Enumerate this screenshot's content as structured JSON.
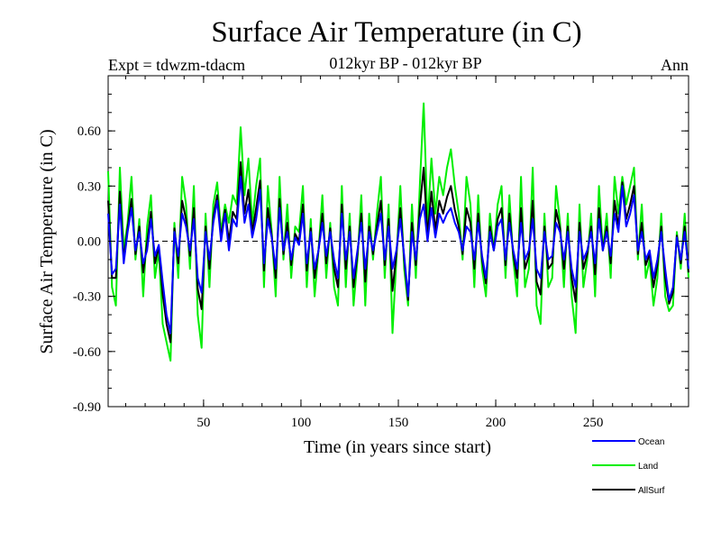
{
  "title": "Surface Air Temperature (in C)",
  "left_label": "Expt = tdwzm-tdacm",
  "center_label": "012kyr BP - 012kyr BP",
  "right_label": "Ann",
  "chart_data": {
    "type": "line",
    "title": "Surface Air Temperature (in C)",
    "xlabel": "Time (in years since start)",
    "ylabel": "Surface Air Temperature (in C)",
    "xlim": [
      1,
      299
    ],
    "ylim": [
      -0.9,
      0.9
    ],
    "x_ticks": [
      50,
      100,
      150,
      200,
      250
    ],
    "x_tick_labels": [
      "50",
      "100",
      "150",
      "200",
      "250"
    ],
    "y_ticks": [
      -0.9,
      -0.6,
      -0.3,
      0.0,
      0.3,
      0.6
    ],
    "y_tick_labels": [
      "-0.90",
      "-0.60",
      "-0.30",
      "0.00",
      "0.30",
      "0.60"
    ],
    "zero_line": "dashed",
    "grid": false,
    "legend_position": "below-right",
    "x_step": 2,
    "x_start": 1,
    "series": [
      {
        "name": "Ocean",
        "color": "#0000ff",
        "values": [
          0.15,
          -0.18,
          -0.15,
          0.2,
          -0.12,
          0.05,
          0.18,
          -0.05,
          0.05,
          -0.12,
          -0.05,
          0.12,
          -0.08,
          -0.02,
          -0.22,
          -0.4,
          -0.5,
          0.05,
          -0.08,
          0.15,
          0.08,
          -0.05,
          0.12,
          -0.2,
          -0.28,
          0.05,
          -0.1,
          0.1,
          0.22,
          0.0,
          0.15,
          -0.05,
          0.12,
          0.08,
          0.35,
          0.1,
          0.2,
          0.02,
          0.12,
          0.28,
          -0.12,
          0.12,
          0.02,
          -0.15,
          0.18,
          -0.05,
          0.05,
          -0.1,
          0.02,
          -0.02,
          0.15,
          -0.12,
          0.05,
          -0.15,
          -0.05,
          0.1,
          -0.08,
          0.05,
          -0.1,
          -0.2,
          0.15,
          -0.1,
          0.05,
          -0.2,
          -0.05,
          0.1,
          -0.15,
          0.05,
          -0.05,
          0.05,
          0.15,
          -0.1,
          0.08,
          -0.15,
          -0.05,
          0.12,
          -0.08,
          -0.3,
          0.05,
          -0.1,
          0.12,
          0.2,
          0.0,
          0.18,
          0.02,
          0.15,
          0.1,
          0.15,
          0.18,
          0.1,
          0.05,
          -0.05,
          0.08,
          0.05,
          -0.1,
          0.1,
          -0.08,
          -0.2,
          0.05,
          -0.05,
          0.08,
          0.12,
          -0.1,
          0.1,
          -0.05,
          -0.15,
          0.1,
          -0.1,
          -0.05,
          0.12,
          -0.15,
          -0.2,
          0.05,
          -0.1,
          -0.08,
          0.1,
          0.05,
          -0.1,
          0.05,
          -0.15,
          -0.25,
          0.05,
          -0.1,
          -0.05,
          0.05,
          -0.12,
          0.12,
          -0.05,
          0.05,
          -0.08,
          0.15,
          0.05,
          0.3,
          0.08,
          0.15,
          0.25,
          -0.05,
          0.05,
          -0.1,
          -0.05,
          -0.2,
          -0.1,
          0.05,
          -0.15,
          -0.32,
          -0.25,
          0.02,
          -0.1,
          0.05,
          -0.15
        ]
      },
      {
        "name": "Land",
        "color": "#00ee00",
        "values": [
          0.38,
          -0.25,
          -0.35,
          0.4,
          -0.05,
          0.1,
          0.35,
          -0.1,
          0.12,
          -0.3,
          0.08,
          0.25,
          -0.2,
          -0.05,
          -0.45,
          -0.55,
          -0.65,
          0.1,
          -0.2,
          0.35,
          0.2,
          -0.15,
          0.3,
          -0.4,
          -0.58,
          0.15,
          -0.25,
          0.2,
          0.32,
          0.05,
          0.2,
          0.1,
          0.25,
          0.2,
          0.62,
          0.25,
          0.45,
          0.1,
          0.3,
          0.45,
          -0.25,
          0.3,
          0.05,
          -0.3,
          0.35,
          -0.1,
          0.2,
          -0.2,
          0.08,
          0.05,
          0.3,
          -0.25,
          0.12,
          -0.3,
          -0.05,
          0.25,
          -0.2,
          0.1,
          -0.25,
          -0.35,
          0.3,
          -0.25,
          0.15,
          -0.35,
          -0.1,
          0.25,
          -0.35,
          0.15,
          -0.1,
          0.15,
          0.35,
          -0.2,
          0.2,
          -0.5,
          -0.1,
          0.3,
          -0.15,
          -0.35,
          0.2,
          -0.2,
          0.3,
          0.75,
          0.1,
          0.45,
          0.15,
          0.35,
          0.25,
          0.4,
          0.5,
          0.3,
          0.15,
          -0.1,
          0.35,
          0.2,
          -0.25,
          0.25,
          -0.15,
          -0.3,
          0.15,
          -0.05,
          0.2,
          0.3,
          -0.2,
          0.25,
          -0.1,
          -0.3,
          0.35,
          -0.25,
          -0.15,
          0.4,
          -0.35,
          -0.45,
          0.15,
          -0.25,
          -0.2,
          0.3,
          0.1,
          -0.25,
          0.15,
          -0.3,
          -0.5,
          0.2,
          -0.25,
          -0.1,
          0.15,
          -0.3,
          0.3,
          -0.05,
          0.15,
          -0.2,
          0.35,
          0.15,
          0.35,
          0.2,
          0.3,
          0.4,
          -0.1,
          0.2,
          -0.2,
          -0.1,
          -0.35,
          -0.2,
          0.15,
          -0.3,
          -0.38,
          -0.35,
          0.05,
          -0.15,
          0.15,
          -0.2
        ]
      },
      {
        "name": "AllSurf",
        "color": "#000000",
        "values": [
          0.22,
          -0.2,
          -0.2,
          0.27,
          -0.1,
          0.07,
          0.23,
          -0.07,
          0.08,
          -0.17,
          -0.01,
          0.16,
          -0.12,
          -0.03,
          -0.29,
          -0.45,
          -0.55,
          0.07,
          -0.12,
          0.22,
          0.12,
          -0.08,
          0.18,
          -0.26,
          -0.37,
          0.08,
          -0.15,
          0.13,
          0.25,
          0.02,
          0.17,
          0.0,
          0.16,
          0.12,
          0.43,
          0.15,
          0.28,
          0.05,
          0.18,
          0.33,
          -0.16,
          0.18,
          0.03,
          -0.2,
          0.23,
          -0.07,
          0.1,
          -0.13,
          0.04,
          0.0,
          0.2,
          -0.16,
          0.07,
          -0.2,
          -0.05,
          0.15,
          -0.12,
          0.07,
          -0.15,
          -0.25,
          0.2,
          -0.15,
          0.08,
          -0.25,
          -0.07,
          0.15,
          -0.22,
          0.08,
          -0.07,
          0.08,
          0.22,
          -0.13,
          0.12,
          -0.27,
          -0.07,
          0.18,
          -0.1,
          -0.32,
          0.1,
          -0.13,
          0.18,
          0.4,
          0.03,
          0.27,
          0.06,
          0.22,
          0.15,
          0.24,
          0.3,
          0.17,
          0.08,
          -0.07,
          0.18,
          0.1,
          -0.15,
          0.15,
          -0.1,
          -0.23,
          0.08,
          -0.05,
          0.12,
          0.18,
          -0.13,
          0.15,
          -0.07,
          -0.2,
          0.18,
          -0.15,
          -0.08,
          0.22,
          -0.22,
          -0.29,
          0.08,
          -0.15,
          -0.12,
          0.17,
          0.07,
          -0.15,
          0.08,
          -0.2,
          -0.33,
          0.1,
          -0.15,
          -0.07,
          0.08,
          -0.18,
          0.18,
          -0.05,
          0.08,
          -0.12,
          0.22,
          0.08,
          0.32,
          0.12,
          0.2,
          0.3,
          -0.07,
          0.1,
          -0.13,
          -0.07,
          -0.25,
          -0.13,
          0.08,
          -0.2,
          -0.34,
          -0.28,
          0.03,
          -0.12,
          0.08,
          -0.17
        ]
      }
    ]
  }
}
